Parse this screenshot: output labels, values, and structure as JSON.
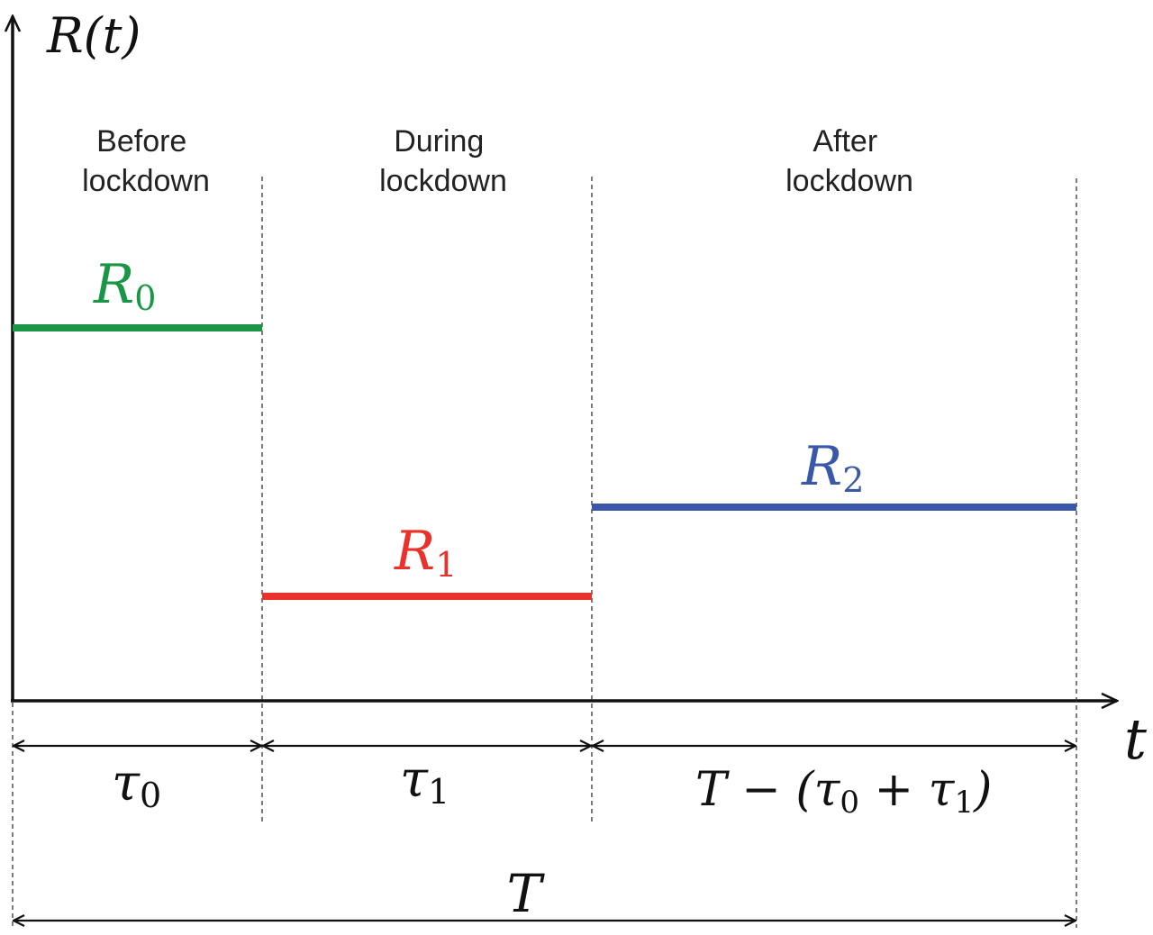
{
  "axes": {
    "y_label": "R(t)",
    "x_label": "t"
  },
  "phases": [
    {
      "line1": "Before",
      "line2": "lockdown"
    },
    {
      "line1": "During",
      "line2": "lockdown"
    },
    {
      "line1": "After",
      "line2": "lockdown"
    }
  ],
  "levels": [
    {
      "symbol": "R",
      "sub": "0",
      "color": "#1a9646"
    },
    {
      "symbol": "R",
      "sub": "1",
      "color": "#e8322b"
    },
    {
      "symbol": "R",
      "sub": "2",
      "color": "#3a58a8"
    }
  ],
  "durations": {
    "tau0": {
      "symbol": "τ",
      "sub": "0"
    },
    "tau1": {
      "symbol": "τ",
      "sub": "1"
    },
    "rest": {
      "text_a": "T − (",
      "tau": "τ",
      "sub0": "0",
      "plus": " + ",
      "sub1": "1",
      "close": ")"
    },
    "total": "T"
  },
  "colors": {
    "axis": "#111111",
    "divider": "#333333"
  }
}
